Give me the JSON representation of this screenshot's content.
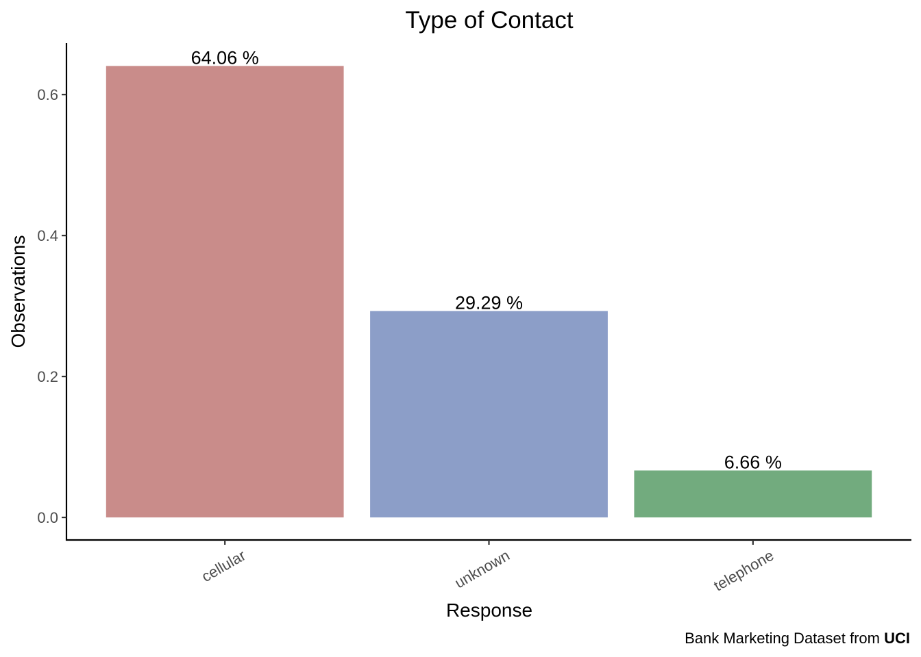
{
  "chart_data": {
    "type": "bar",
    "title": "Type of Contact",
    "xlabel": "Response",
    "ylabel": "Observations",
    "categories": [
      "cellular",
      "unknown",
      "telephone"
    ],
    "values": [
      0.6406,
      0.2929,
      0.0666
    ],
    "value_labels": [
      "64.06 %",
      "29.29 %",
      "6.66 %"
    ],
    "colors": [
      "#c98c8a",
      "#8c9ec8",
      "#72ab7e"
    ],
    "ylim": [
      -0.032,
      0.673
    ],
    "yticks": [
      0.0,
      0.2,
      0.4,
      0.6
    ],
    "ytick_labels": [
      "0.0",
      "0.2",
      "0.4",
      "0.6"
    ],
    "grid": false,
    "legend": "none",
    "caption": {
      "prefix": "Bank Marketing Dataset from ",
      "bold": "UCI"
    }
  }
}
